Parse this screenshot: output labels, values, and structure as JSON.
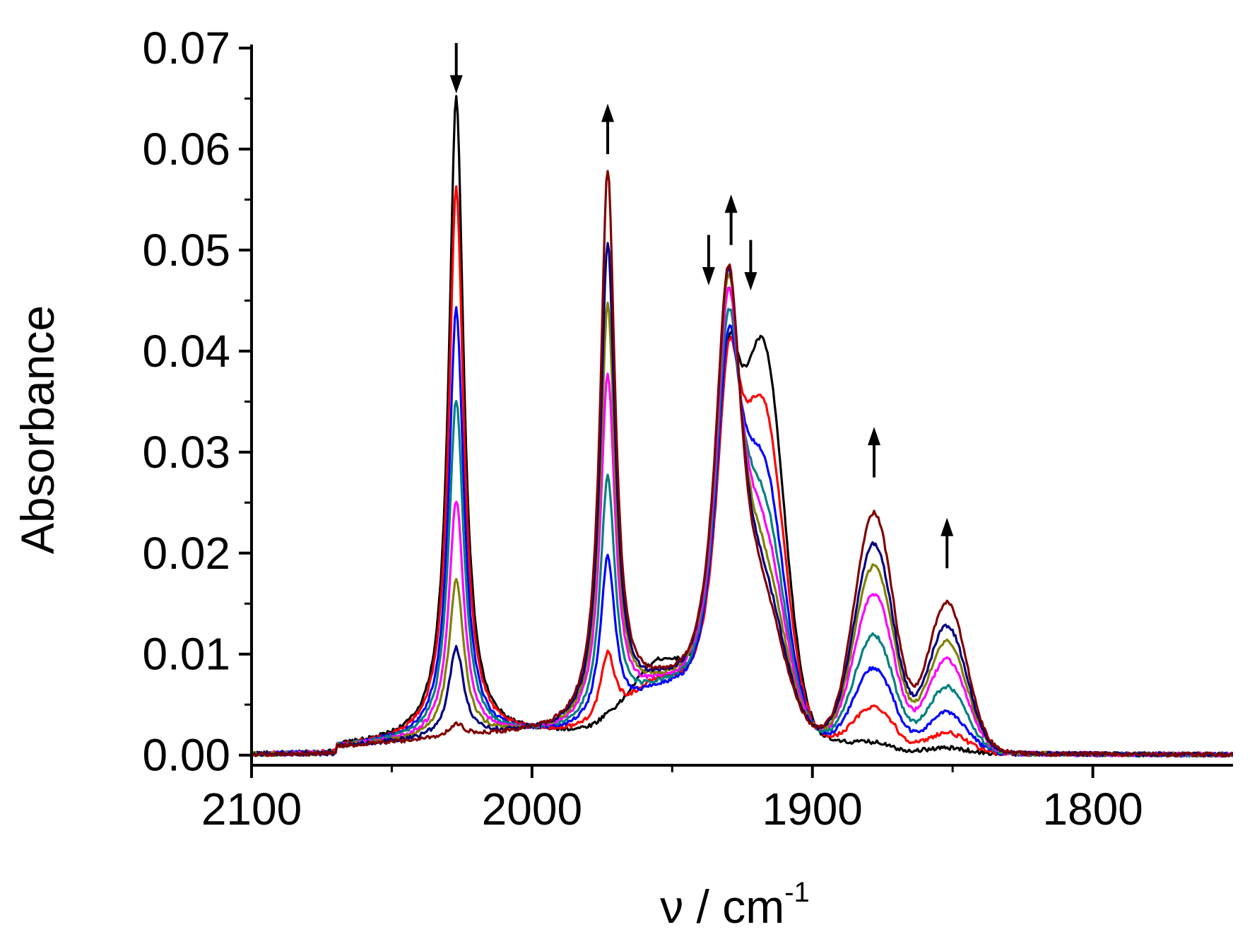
{
  "chart_data": {
    "type": "line",
    "xlabel": "ν / cm",
    "xlabel_superscript": "-1",
    "ylabel": "Absorbance",
    "xlim": [
      2100,
      1750
    ],
    "ylim": [
      -0.001,
      0.07
    ],
    "x_reversed": true,
    "grid": false,
    "x_ticks": [
      2100,
      2000,
      1900,
      1800
    ],
    "x_minor_ticks": [
      2050,
      1950,
      1850
    ],
    "y_ticks": [
      "0.00",
      "0.01",
      "0.02",
      "0.03",
      "0.04",
      "0.05",
      "0.06",
      "0.07"
    ],
    "peaks": [
      {
        "center": 2027,
        "width": 3.2,
        "type": "lorentz"
      },
      {
        "center": 1973,
        "width": 3.2,
        "type": "lorentz"
      },
      {
        "center": 1930,
        "width": 6,
        "type": "lorentz"
      },
      {
        "center": 1917,
        "width": 7,
        "type": "gauss"
      },
      {
        "center": 1878,
        "width": 7,
        "type": "gauss"
      },
      {
        "center": 1852,
        "width": 7,
        "type": "gauss"
      }
    ],
    "series": [
      {
        "color": "#000000",
        "amps": [
          0.0635,
          0.0005,
          0.0335,
          0.034,
          0.0005,
          0.0005
        ],
        "shoulder": 0.006
      },
      {
        "color": "#ff0000",
        "amps": [
          0.0545,
          0.0068,
          0.0345,
          0.028,
          0.004,
          0.002
        ],
        "shoulder": 0.004
      },
      {
        "color": "#0000ff",
        "amps": [
          0.0425,
          0.0165,
          0.037,
          0.022,
          0.0078,
          0.004
        ],
        "shoulder": 0.003
      },
      {
        "color": "#008080",
        "amps": [
          0.0335,
          0.0245,
          0.0395,
          0.018,
          0.011,
          0.0065
        ],
        "shoulder": 0.003
      },
      {
        "color": "#ff00ff",
        "amps": [
          0.0235,
          0.0345,
          0.042,
          0.015,
          0.015,
          0.0092
        ],
        "shoulder": 0.003
      },
      {
        "color": "#808000",
        "amps": [
          0.0155,
          0.0415,
          0.044,
          0.012,
          0.0178,
          0.011
        ],
        "shoulder": 0.003
      },
      {
        "color": "#000080",
        "amps": [
          0.0088,
          0.0475,
          0.045,
          0.01,
          0.02,
          0.0125
        ],
        "shoulder": 0.003
      },
      {
        "color": "#800000",
        "amps": [
          0.0013,
          0.0548,
          0.0455,
          0.0085,
          0.023,
          0.0148
        ],
        "shoulder": 0.003
      }
    ],
    "annotations": [
      {
        "type": "arrow",
        "direction": "down",
        "x": 2027,
        "y_from": 0.0705,
        "y_to": 0.0655
      },
      {
        "type": "arrow",
        "direction": "up",
        "x": 1973,
        "y_from": 0.0595,
        "y_to": 0.0645
      },
      {
        "type": "arrow",
        "direction": "down",
        "x": 1937,
        "y_from": 0.0515,
        "y_to": 0.0465
      },
      {
        "type": "arrow",
        "direction": "up",
        "x": 1929,
        "y_from": 0.0505,
        "y_to": 0.0555
      },
      {
        "type": "arrow",
        "direction": "down",
        "x": 1922,
        "y_from": 0.051,
        "y_to": 0.046
      },
      {
        "type": "arrow",
        "direction": "up",
        "x": 1878,
        "y_from": 0.0275,
        "y_to": 0.0325
      },
      {
        "type": "arrow",
        "direction": "up",
        "x": 1852,
        "y_from": 0.0185,
        "y_to": 0.0235
      }
    ]
  }
}
